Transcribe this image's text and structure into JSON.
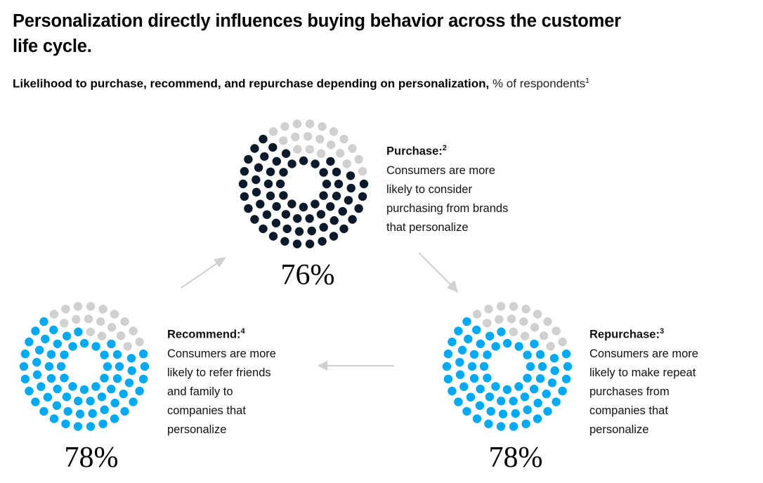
{
  "header": {
    "title": "Personalization directly influences buying behavior across the customer life cycle.",
    "subtitle_bold": "Likelihood to purchase, recommend, and repurchase depending on personalization,",
    "subtitle_light": "% of respondents",
    "subtitle_footnote": "1"
  },
  "colors": {
    "purchase": "#0b1a2b",
    "recommend": "#00a9f4",
    "repurchase": "#00a9f4",
    "remainder": "#d0d0d0",
    "arrow": "#d0d0d0"
  },
  "chart_data": {
    "type": "dot-circle",
    "title": "Likelihood to purchase, recommend, and repurchase depending on personalization, % of respondents",
    "unit": "%",
    "series": [
      {
        "name": "Purchase",
        "value": 76,
        "label": "76%",
        "footnote": "2",
        "description": "Consumers are more likely to consider purchasing from brands that personalize"
      },
      {
        "name": "Recommend",
        "value": 78,
        "label": "78%",
        "footnote": "4",
        "description": "Consumers are more likely to refer friends and family to companies that personalize"
      },
      {
        "name": "Repurchase",
        "value": 78,
        "label": "78%",
        "footnote": "3",
        "description": "Consumers are more likely to make repeat purchases from companies that personalize"
      }
    ],
    "flow": [
      "Purchase",
      "Repurchase",
      "Recommend",
      "Purchase"
    ]
  },
  "cards": {
    "purchase": {
      "head": "Purchase:",
      "sup": "2",
      "lines": [
        "Consumers are more",
        "likely to consider",
        "purchasing from brands",
        "that personalize"
      ],
      "pct": "76%"
    },
    "recommend": {
      "head": "Recommend:",
      "sup": "4",
      "lines": [
        "Consumers are more",
        "likely to refer friends",
        "and family to",
        "companies that",
        "personalize"
      ],
      "pct": "78%"
    },
    "repurchase": {
      "head": "Repurchase:",
      "sup": "3",
      "lines": [
        "Consumers are more",
        "likely to make repeat",
        "purchases from",
        "companies that",
        "personalize"
      ],
      "pct": "78%"
    }
  }
}
